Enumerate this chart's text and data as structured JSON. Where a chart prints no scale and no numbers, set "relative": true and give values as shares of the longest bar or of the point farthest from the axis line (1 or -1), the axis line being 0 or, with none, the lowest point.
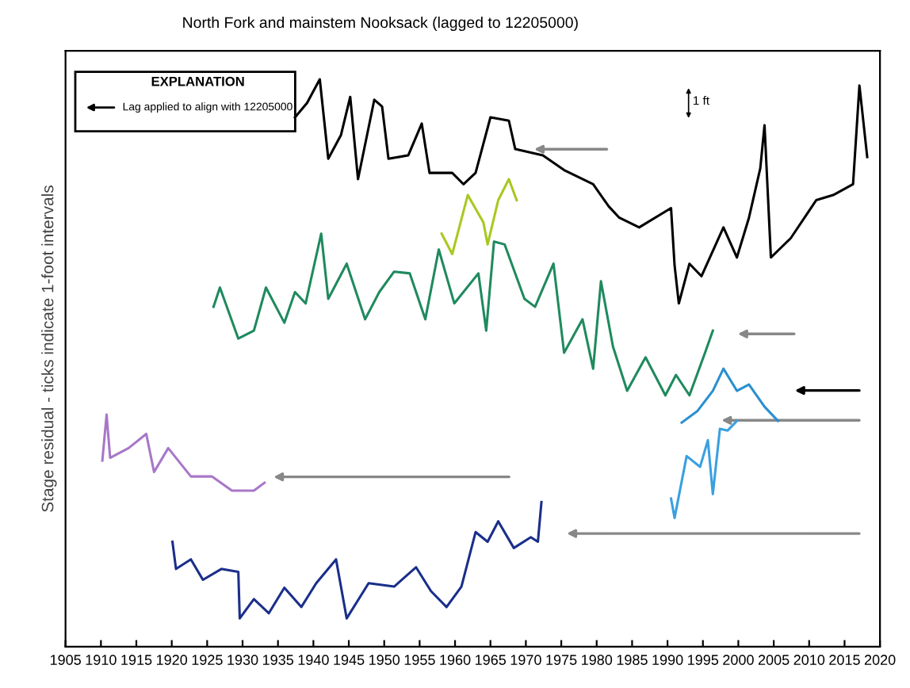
{
  "chart_data": {
    "type": "line",
    "relative": true,
    "title": "North Fork and mainstem Nooksack (lagged to 12205000)",
    "ylabel": "Stage residual - ticks indicate 1-foot intervals",
    "annotations": [
      "EXPLANATION",
      "Lag applied to align with 12205000",
      "1 ft"
    ],
    "xlim": [
      1905,
      2020
    ],
    "xticks": [
      1905,
      1910,
      1915,
      1920,
      1925,
      1930,
      1935,
      1940,
      1945,
      1950,
      1955,
      1960,
      1965,
      1970,
      1975,
      1980,
      1985,
      1990,
      1995,
      2000,
      2005,
      2010,
      2015,
      2020
    ],
    "series": [
      {
        "color": "#000000",
        "x": [
          1937.4,
          1939.1,
          1940.9,
          1942.1,
          1943.9,
          1945.2,
          1946.3,
          1948.6,
          1949.7,
          1950.6,
          1953.4,
          1955.3,
          1956.4,
          1959.6,
          1961.2,
          1962.9,
          1965.0,
          1967.6,
          1968.5,
          1972.4,
          1975.4,
          1979.5,
          1981.7,
          1983.2,
          1986.0,
          1990.5,
          1991.0,
          1991.6,
          1993.1,
          1994.8,
          1997.9,
          1999.8,
          2001.5,
          2003.1,
          2003.7,
          2004.6,
          2007.4,
          2011.0,
          2013.4,
          2016.2,
          2017.1,
          2018.2
        ],
        "values": [
          0.933,
          0.958,
          1.0,
          0.86,
          0.902,
          0.969,
          0.824,
          0.964,
          0.952,
          0.86,
          0.866,
          0.922,
          0.835,
          0.835,
          0.815,
          0.835,
          0.933,
          0.927,
          0.877,
          0.866,
          0.84,
          0.815,
          0.776,
          0.756,
          0.739,
          0.773,
          0.672,
          0.605,
          0.675,
          0.653,
          0.739,
          0.686,
          0.756,
          0.843,
          0.919,
          0.686,
          0.72,
          0.787,
          0.796,
          0.815,
          0.989,
          0.863
        ]
      },
      {
        "color": "#a8c820",
        "x": [
          1958.1,
          1959.6,
          1961.8,
          1964.0,
          1964.6,
          1966.1,
          1967.6,
          1968.7
        ],
        "values": [
          0.728,
          0.692,
          0.796,
          0.748,
          0.709,
          0.787,
          0.824,
          0.787
        ]
      },
      {
        "color": "#1f8a5e",
        "x": [
          1925.9,
          1926.8,
          1929.4,
          1931.6,
          1933.3,
          1935.9,
          1937.4,
          1938.9,
          1941.1,
          1942.1,
          1944.7,
          1947.3,
          1949.3,
          1951.4,
          1953.6,
          1955.8,
          1957.7,
          1959.9,
          1963.3,
          1964.4,
          1965.5,
          1967.0,
          1969.8,
          1971.3,
          1973.9,
          1975.4,
          1978.0,
          1979.5,
          1980.6,
          1982.3,
          1984.3,
          1986.9,
          1989.7,
          1991.2,
          1993.1,
          1995.3,
          1996.4
        ],
        "values": [
          0.599,
          0.633,
          0.543,
          0.557,
          0.633,
          0.571,
          0.625,
          0.605,
          0.728,
          0.613,
          0.675,
          0.577,
          0.625,
          0.661,
          0.658,
          0.577,
          0.7,
          0.605,
          0.658,
          0.557,
          0.714,
          0.709,
          0.613,
          0.599,
          0.675,
          0.518,
          0.577,
          0.49,
          0.644,
          0.529,
          0.451,
          0.51,
          0.443,
          0.479,
          0.443,
          0.518,
          0.557
        ]
      },
      {
        "color": "#2a8fd0",
        "x": [
          1992.0,
          1994.2,
          1996.4,
          1997.9,
          1999.8,
          2001.5,
          2003.7,
          2005.6
        ],
        "values": [
          0.395,
          0.415,
          0.451,
          0.49,
          0.451,
          0.462,
          0.423,
          0.398
        ]
      },
      {
        "color": "#3aa0e0",
        "x": [
          1990.5,
          1991.0,
          1992.7,
          1994.6,
          1995.7,
          1996.4,
          1997.4,
          1998.5,
          1999.8
        ],
        "values": [
          0.261,
          0.227,
          0.336,
          0.317,
          0.364,
          0.269,
          0.384,
          0.381,
          0.398
        ]
      },
      {
        "color": "#a877c8",
        "x": [
          1910.2,
          1910.8,
          1911.3,
          1913.9,
          1916.4,
          1917.5,
          1919.5,
          1922.7,
          1925.7,
          1928.5,
          1931.6,
          1933.1
        ],
        "values": [
          0.328,
          0.409,
          0.333,
          0.35,
          0.375,
          0.308,
          0.35,
          0.3,
          0.3,
          0.275,
          0.275,
          0.289
        ]
      },
      {
        "color": "#1a2e8a",
        "x": [
          1920.1,
          1920.6,
          1922.7,
          1924.4,
          1927.0,
          1929.4,
          1929.6,
          1931.6,
          1933.7,
          1935.9,
          1938.3,
          1940.4,
          1943.2,
          1944.7,
          1947.8,
          1951.4,
          1954.5,
          1956.6,
          1958.8,
          1960.9,
          1962.9,
          1964.6,
          1966.1,
          1968.3,
          1970.7,
          1971.7,
          1972.2
        ],
        "values": [
          0.185,
          0.137,
          0.154,
          0.118,
          0.137,
          0.132,
          0.05,
          0.084,
          0.059,
          0.104,
          0.07,
          0.112,
          0.154,
          0.05,
          0.112,
          0.106,
          0.14,
          0.098,
          0.07,
          0.106,
          0.202,
          0.185,
          0.221,
          0.174,
          0.193,
          0.185,
          0.255
        ]
      }
    ]
  }
}
